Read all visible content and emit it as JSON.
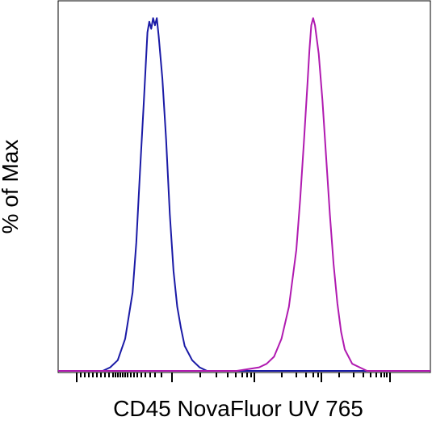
{
  "chart_data": {
    "type": "line",
    "title": "",
    "xlabel": "CD45 NovaFluor UV 765",
    "ylabel": "% of Max",
    "x_scale": "log",
    "x_ticks_labeled": false,
    "ylim": [
      0,
      100
    ],
    "grid": false,
    "legend": "none",
    "series": [
      {
        "color": "#1a1aa6",
        "x": [
          0.0,
          0.03,
          0.06,
          0.08,
          0.1,
          0.12,
          0.14,
          0.16,
          0.18,
          0.2,
          0.21,
          0.22,
          0.23,
          0.235,
          0.24,
          0.245,
          0.25,
          0.255,
          0.26,
          0.265,
          0.27,
          0.28,
          0.29,
          0.3,
          0.31,
          0.32,
          0.33,
          0.34,
          0.36,
          0.38,
          0.4,
          0.42,
          0.45,
          0.48,
          1.0
        ],
        "y": [
          0,
          0,
          0,
          0,
          0,
          0,
          1,
          3,
          9,
          22,
          36,
          56,
          75,
          85,
          95,
          98,
          96,
          99,
          97,
          99,
          94,
          82,
          65,
          44,
          28,
          18,
          12,
          7,
          3,
          1,
          0,
          0,
          0,
          0,
          0
        ]
      },
      {
        "color": "#b01ab0",
        "x": [
          0.0,
          0.38,
          0.42,
          0.48,
          0.54,
          0.56,
          0.58,
          0.6,
          0.62,
          0.64,
          0.65,
          0.66,
          0.67,
          0.675,
          0.68,
          0.685,
          0.69,
          0.7,
          0.71,
          0.72,
          0.73,
          0.74,
          0.75,
          0.76,
          0.77,
          0.79,
          0.81,
          0.83,
          0.85,
          0.9,
          1.0
        ],
        "y": [
          0,
          0,
          0,
          0,
          1,
          2,
          4,
          9,
          18,
          34,
          48,
          64,
          81,
          90,
          97,
          99,
          97,
          89,
          76,
          60,
          44,
          30,
          19,
          11,
          6,
          2,
          1,
          0,
          0,
          0,
          0
        ]
      }
    ]
  }
}
